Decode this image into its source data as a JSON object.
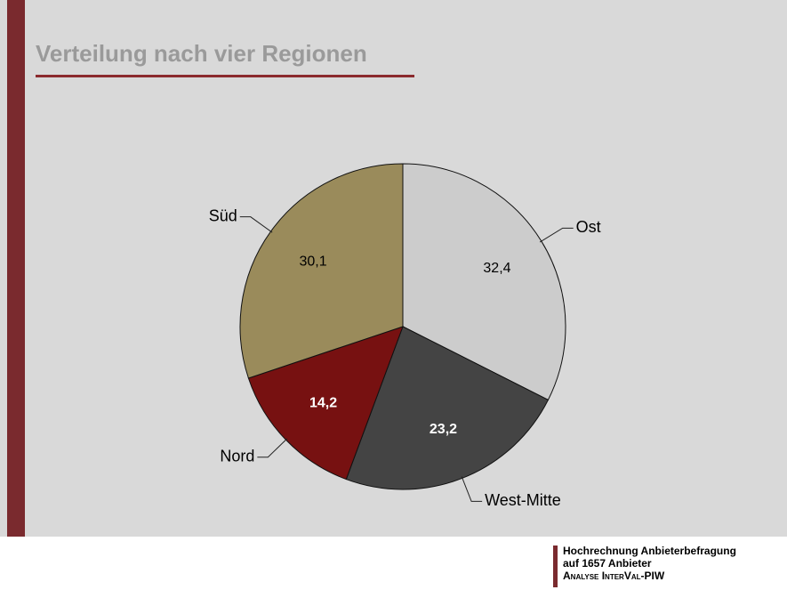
{
  "chart_data": {
    "type": "pie",
    "title": "Verteilung nach vier Regionen",
    "categories": [
      "Ost",
      "West-Mitte",
      "Nord",
      "Süd"
    ],
    "values": [
      32.4,
      23.2,
      14.2,
      30.1
    ],
    "value_labels": [
      "32,4",
      "23,2",
      "14,2",
      "30,1"
    ],
    "colors": [
      "#cccccc",
      "#444444",
      "#771111",
      "#9a8b5b"
    ]
  },
  "footer": {
    "lines": [
      "Hochrechnung Anbieterbefragung",
      "auf 1657 Anbieter",
      "Analyse InterVal-PIW"
    ]
  }
}
